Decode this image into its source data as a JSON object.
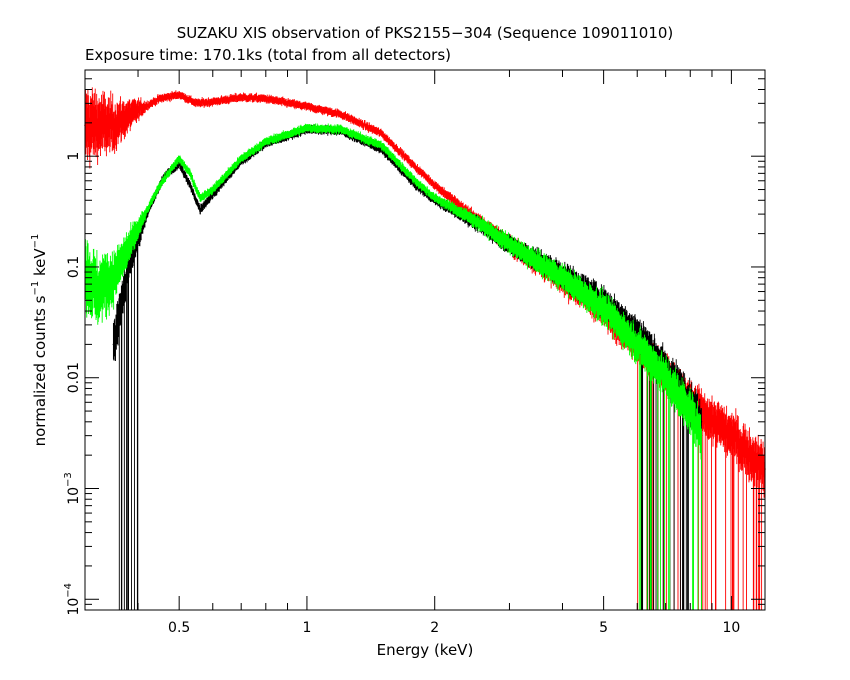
{
  "chart_data": {
    "type": "scatter",
    "title": "SUZAKU XIS observation of PKS2155−304 (Sequence 109011010)",
    "subtitle": "Exposure time: 170.1ks (total from all detectors)",
    "xlabel": "Energy (keV)",
    "ylabel": {
      "base": "normalized counts s",
      "exp1": "−1",
      "mid": " keV",
      "exp2": "−1"
    },
    "xscale": "log",
    "yscale": "log",
    "xlim": [
      0.3,
      12
    ],
    "ylim": [
      8e-05,
      6
    ],
    "x_ticks": [
      {
        "value": 0.5,
        "label": "0.5"
      },
      {
        "value": 1,
        "label": "1"
      },
      {
        "value": 2,
        "label": "2"
      },
      {
        "value": 5,
        "label": "5"
      },
      {
        "value": 10,
        "label": "10"
      }
    ],
    "y_ticks": [
      {
        "value": 1,
        "label": "1",
        "exp": ""
      },
      {
        "value": 0.1,
        "label": "0.1",
        "exp": ""
      },
      {
        "value": 0.01,
        "label": "0.01",
        "exp": ""
      },
      {
        "value": 0.001,
        "label": "10",
        "exp": "−3"
      },
      {
        "value": 0.0001,
        "label": "10",
        "exp": "−4"
      }
    ],
    "series": [
      {
        "color": "#ff0000",
        "x_range": [
          0.3,
          12
        ],
        "points": [
          [
            0.3,
            1.9
          ],
          [
            0.35,
            1.9
          ],
          [
            0.4,
            2.6
          ],
          [
            0.45,
            3.3
          ],
          [
            0.5,
            3.6
          ],
          [
            0.55,
            3.0
          ],
          [
            0.6,
            3.1
          ],
          [
            0.7,
            3.4
          ],
          [
            0.8,
            3.3
          ],
          [
            1.0,
            2.8
          ],
          [
            1.2,
            2.4
          ],
          [
            1.5,
            1.6
          ],
          [
            1.8,
            0.8
          ],
          [
            2.0,
            0.55
          ],
          [
            2.5,
            0.27
          ],
          [
            3.0,
            0.16
          ],
          [
            4.0,
            0.075
          ],
          [
            5.0,
            0.04
          ],
          [
            6.0,
            0.02
          ],
          [
            7.0,
            0.011
          ],
          [
            8.0,
            0.006
          ],
          [
            10.0,
            0.003
          ],
          [
            12.0,
            0.0015
          ]
        ]
      },
      {
        "color": "#000000",
        "x_range": [
          0.35,
          8.5
        ],
        "points": [
          [
            0.35,
            0.02
          ],
          [
            0.38,
            0.1
          ],
          [
            0.42,
            0.3
          ],
          [
            0.46,
            0.65
          ],
          [
            0.5,
            0.85
          ],
          [
            0.53,
            0.55
          ],
          [
            0.56,
            0.33
          ],
          [
            0.6,
            0.45
          ],
          [
            0.7,
            0.9
          ],
          [
            0.8,
            1.3
          ],
          [
            1.0,
            1.75
          ],
          [
            1.2,
            1.7
          ],
          [
            1.5,
            1.15
          ],
          [
            1.8,
            0.55
          ],
          [
            2.0,
            0.4
          ],
          [
            2.5,
            0.25
          ],
          [
            3.0,
            0.16
          ],
          [
            4.0,
            0.085
          ],
          [
            5.0,
            0.048
          ],
          [
            6.0,
            0.025
          ],
          [
            7.0,
            0.012
          ],
          [
            8.0,
            0.006
          ],
          [
            8.5,
            0.004
          ]
        ]
      },
      {
        "color": "#00ff00",
        "x_range": [
          0.3,
          8.5
        ],
        "points": [
          [
            0.3,
            0.09
          ],
          [
            0.32,
            0.06
          ],
          [
            0.35,
            0.08
          ],
          [
            0.4,
            0.22
          ],
          [
            0.45,
            0.55
          ],
          [
            0.5,
            0.95
          ],
          [
            0.53,
            0.7
          ],
          [
            0.56,
            0.42
          ],
          [
            0.6,
            0.5
          ],
          [
            0.7,
            0.95
          ],
          [
            0.8,
            1.35
          ],
          [
            1.0,
            1.8
          ],
          [
            1.2,
            1.75
          ],
          [
            1.5,
            1.25
          ],
          [
            1.8,
            0.6
          ],
          [
            2.0,
            0.42
          ],
          [
            2.5,
            0.26
          ],
          [
            3.0,
            0.16
          ],
          [
            4.0,
            0.08
          ],
          [
            5.0,
            0.042
          ],
          [
            6.0,
            0.02
          ],
          [
            7.0,
            0.01
          ],
          [
            8.0,
            0.005
          ],
          [
            8.5,
            0.003
          ]
        ]
      }
    ]
  }
}
